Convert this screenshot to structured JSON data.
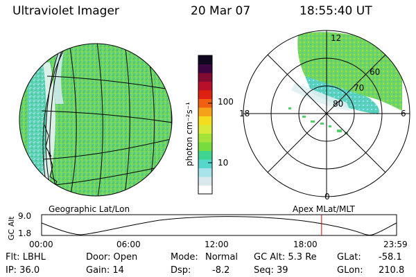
{
  "header": {
    "title": "Ultraviolet Imager",
    "date": "20 Mar 07",
    "time": "18:55:40 UT"
  },
  "colorbar": {
    "label": "photon cm⁻²s⁻¹",
    "ticks": [
      "100",
      "10"
    ],
    "colors": [
      "#ffffff",
      "#d9e9ee",
      "#a8e3ea",
      "#55d7cc",
      "#3fd48f",
      "#78dc3e",
      "#a6e33a",
      "#d7ea3a",
      "#f5dc1e",
      "#f5a21a",
      "#f06010",
      "#e02010",
      "#b8102a",
      "#800a30",
      "#3a0540",
      "#120720"
    ]
  },
  "geo_label": "Geographic Lat/Lon",
  "polar": {
    "label": "Apex MLat/MLT",
    "mlt_labels": [
      "12",
      "18",
      "6",
      "0"
    ],
    "lat_labels": [
      "60",
      "70",
      "80"
    ]
  },
  "timeline": {
    "ylabel": "GC Alt",
    "y_ticks": [
      "9.0",
      "1.8"
    ],
    "x_ticks": [
      "00:00",
      "06:00",
      "12:00",
      "18:00",
      "23:59"
    ],
    "marker_hours": 18.93,
    "marker_color": "#e00000"
  },
  "status": {
    "filter": "Flt: LBHL",
    "door": "Door: Open",
    "mode_label": "Mode:",
    "mode_value": "Normal",
    "gc_alt": "GC Alt: 5.3 Re",
    "glat_label": "GLat:",
    "glat_value": "-58.1",
    "ip": "IP: 36.0",
    "gain": "Gain: 14",
    "dsp_label": "Dsp:",
    "dsp_value": "-8.2",
    "seq": "Seq: 39",
    "glon_label": "GLon:",
    "glon_value": "210.8"
  },
  "colors": {
    "aurora_green": "#5fd36a",
    "aurora_cyan": "#59d6c8",
    "aurora_pale": "#d7ecef"
  }
}
